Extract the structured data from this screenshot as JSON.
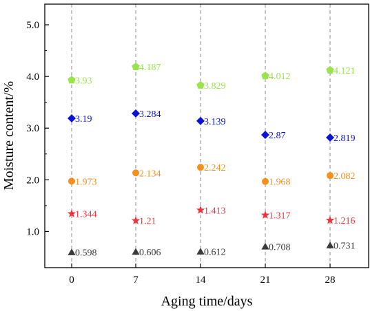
{
  "chart_data": {
    "type": "scatter",
    "title": "",
    "xlabel": "Aging time/days",
    "ylabel": "Moisture content/%",
    "categories": [
      "0",
      "7",
      "14",
      "21",
      "28"
    ],
    "yticks": [
      "1.0",
      "2.0",
      "3.0",
      "4.0",
      "5.0"
    ],
    "ylim": [
      0.3,
      5.4
    ],
    "grid": "vertical dashed lines at each category",
    "legend": "none",
    "series": [
      {
        "marker": "pentagon",
        "color": "#99e34d",
        "values": [
          3.93,
          4.187,
          3.829,
          4.012,
          4.121
        ],
        "labels": [
          "3.93",
          "4.187",
          "3.829",
          "4.012",
          "4.121"
        ]
      },
      {
        "marker": "diamond",
        "color": "#0b14d6",
        "values": [
          3.19,
          3.284,
          3.139,
          2.87,
          2.819
        ],
        "labels": [
          "3.19",
          "3.284",
          "3.139",
          "2.87",
          "2.819"
        ]
      },
      {
        "marker": "circle",
        "color": "#f5901c",
        "values": [
          1.973,
          2.134,
          2.242,
          1.968,
          2.082
        ],
        "labels": [
          "1.973",
          "2.134",
          "2.242",
          "1.968",
          "2.082"
        ]
      },
      {
        "marker": "star",
        "color": "#f0323a",
        "values": [
          1.344,
          1.21,
          1.413,
          1.317,
          1.216
        ],
        "labels": [
          "1.344",
          "1.21",
          "1.413",
          "1.317",
          "1.216"
        ]
      },
      {
        "marker": "triangle",
        "color": "#3a3a3a",
        "values": [
          0.598,
          0.606,
          0.612,
          0.708,
          0.731
        ],
        "labels": [
          "0.598",
          "0.606",
          "0.612",
          "0.708",
          "0.731"
        ]
      }
    ]
  }
}
